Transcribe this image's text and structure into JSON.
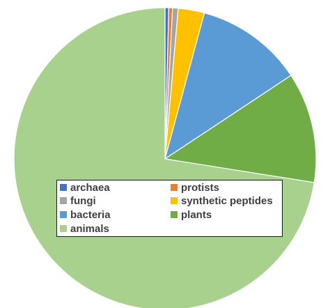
{
  "chart_data": {
    "type": "pie",
    "title": "",
    "start_angle_deg": 0,
    "direction": "clockwise",
    "legend_position": "center",
    "slices": [
      {
        "label": "archaea",
        "value": 0.4,
        "color": "#4472c4"
      },
      {
        "label": "protists",
        "value": 0.4,
        "color": "#ed7d31"
      },
      {
        "label": "fungi",
        "value": 0.6,
        "color": "#a5a5a5"
      },
      {
        "label": "synthetic peptides",
        "value": 2.8,
        "color": "#ffc000"
      },
      {
        "label": "bacteria",
        "value": 11.5,
        "color": "#5b9bd5"
      },
      {
        "label": "plants",
        "value": 11.8,
        "color": "#70ad47"
      },
      {
        "label": "animals",
        "value": 72.5,
        "color": "#a9d18e"
      }
    ]
  },
  "legend": {
    "items": [
      {
        "label": "archaea",
        "color": "#4472c4"
      },
      {
        "label": "protists",
        "color": "#ed7d31"
      },
      {
        "label": "fungi",
        "color": "#a5a5a5"
      },
      {
        "label": "synthetic peptides",
        "color": "#ffc000"
      },
      {
        "label": "bacteria",
        "color": "#5b9bd5"
      },
      {
        "label": "plants",
        "color": "#70ad47"
      },
      {
        "label": "animals",
        "color": "#a9d18e"
      }
    ]
  }
}
